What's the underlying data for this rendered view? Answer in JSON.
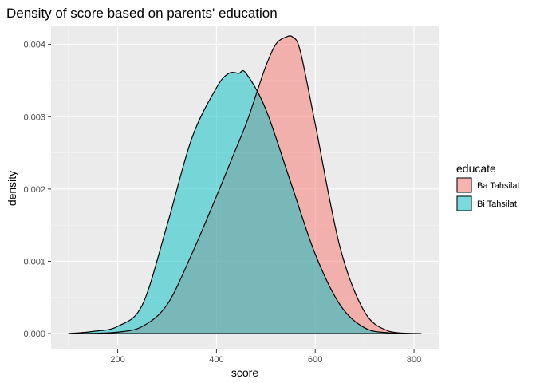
{
  "chart_data": {
    "type": "area",
    "subtype": "density",
    "title": "Density of score based on parents' education",
    "xlabel": "score",
    "ylabel": "density",
    "xlim": [
      65,
      850
    ],
    "ylim": [
      -0.00022,
      0.00425
    ],
    "x_ticks": [
      200,
      400,
      600,
      800
    ],
    "x_tick_labels": [
      "200",
      "400",
      "600",
      "800"
    ],
    "y_ticks": [
      0,
      0.001,
      0.002,
      0.003,
      0.004
    ],
    "y_tick_labels": [
      "0.000",
      "0.001",
      "0.002",
      "0.003",
      "0.004"
    ],
    "grid": true,
    "legend": {
      "title": "educate",
      "position": "right"
    },
    "series": [
      {
        "name": "Ba Tahsilat",
        "color": "#F8766D",
        "x": [
          130,
          200,
          250,
          300,
          350,
          400,
          430,
          460,
          480,
          500,
          520,
          540,
          555,
          570,
          600,
          650,
          700,
          750,
          800
        ],
        "y": [
          0,
          2e-05,
          0.0001,
          0.0004,
          0.0011,
          0.0019,
          0.0024,
          0.0029,
          0.0033,
          0.0037,
          0.004,
          0.0041,
          0.0041,
          0.0039,
          0.0029,
          0.0012,
          0.0003,
          3e-05,
          0
        ]
      },
      {
        "name": "Bi Tahsilat",
        "color": "#00BFC4",
        "x": [
          100,
          150,
          200,
          250,
          300,
          350,
          400,
          425,
          445,
          460,
          500,
          550,
          600,
          650,
          700,
          750,
          815
        ],
        "y": [
          0,
          3e-05,
          0.0001,
          0.0004,
          0.0015,
          0.0027,
          0.0034,
          0.0036,
          0.0036,
          0.0036,
          0.0031,
          0.0021,
          0.0011,
          0.0004,
          8e-05,
          1e-05,
          0
        ]
      }
    ]
  }
}
